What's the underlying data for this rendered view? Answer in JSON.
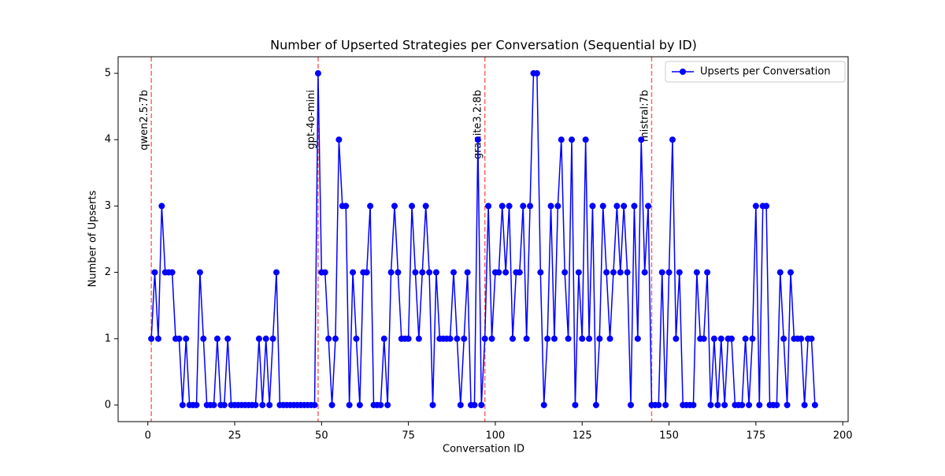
{
  "chart_data": {
    "type": "line",
    "title": "Number of Upserted Strategies per Conversation (Sequential by ID)",
    "x_label": "Conversation ID",
    "y_label": "Number of Upserts",
    "x": [
      1,
      2,
      3,
      4,
      5,
      6,
      7,
      8,
      9,
      10,
      11,
      12,
      13,
      14,
      15,
      16,
      17,
      18,
      19,
      20,
      21,
      22,
      23,
      24,
      25,
      26,
      27,
      28,
      29,
      30,
      31,
      32,
      33,
      34,
      35,
      36,
      37,
      38,
      39,
      40,
      41,
      42,
      43,
      44,
      45,
      46,
      47,
      48,
      49,
      50,
      51,
      52,
      53,
      54,
      55,
      56,
      57,
      58,
      59,
      60,
      61,
      62,
      63,
      64,
      65,
      66,
      67,
      68,
      69,
      70,
      71,
      72,
      73,
      74,
      75,
      76,
      77,
      78,
      79,
      80,
      81,
      82,
      83,
      84,
      85,
      86,
      87,
      88,
      89,
      90,
      91,
      92,
      93,
      94,
      95,
      96,
      97,
      98,
      99,
      100,
      101,
      102,
      103,
      104,
      105,
      106,
      107,
      108,
      109,
      110,
      111,
      112,
      113,
      114,
      115,
      116,
      117,
      118,
      119,
      120,
      121,
      122,
      123,
      124,
      125,
      126,
      127,
      128,
      129,
      130,
      131,
      132,
      133,
      134,
      135,
      136,
      137,
      138,
      139,
      140,
      141,
      142,
      143,
      144,
      145,
      146,
      147,
      148,
      149,
      150,
      151,
      152,
      153,
      154,
      155,
      156,
      157,
      158,
      159,
      160,
      161,
      162,
      163,
      164,
      165,
      166,
      167,
      168,
      169,
      170,
      171,
      172,
      173,
      174,
      175,
      176,
      177,
      178,
      179,
      180,
      181,
      182,
      183,
      184,
      185,
      186,
      187,
      188,
      189,
      190,
      191,
      192
    ],
    "series": [
      {
        "name": "Upserts per Conversation",
        "color": "#0000ff",
        "values": [
          1,
          2,
          1,
          3,
          2,
          2,
          2,
          1,
          1,
          0,
          1,
          0,
          0,
          0,
          2,
          1,
          0,
          0,
          0,
          1,
          0,
          0,
          1,
          0,
          0,
          0,
          0,
          0,
          0,
          0,
          0,
          1,
          0,
          1,
          0,
          1,
          2,
          0,
          0,
          0,
          0,
          0,
          0,
          0,
          0,
          0,
          0,
          0,
          5,
          2,
          2,
          1,
          0,
          1,
          4,
          3,
          3,
          0,
          2,
          1,
          0,
          2,
          2,
          3,
          0,
          0,
          0,
          1,
          0,
          2,
          3,
          2,
          1,
          1,
          1,
          3,
          2,
          1,
          2,
          3,
          2,
          0,
          2,
          1,
          1,
          1,
          1,
          2,
          1,
          0,
          1,
          2,
          0,
          0,
          4,
          0,
          1,
          3,
          1,
          2,
          2,
          3,
          2,
          3,
          1,
          2,
          2,
          3,
          1,
          3,
          5,
          5,
          2,
          0,
          1,
          3,
          1,
          3,
          4,
          2,
          1,
          4,
          0,
          2,
          1,
          4,
          1,
          3,
          0,
          1,
          3,
          2,
          1,
          2,
          3,
          2,
          3,
          2,
          0,
          3,
          1,
          4,
          2,
          3,
          0,
          0,
          0,
          2,
          0,
          2,
          4,
          1,
          2,
          0,
          0,
          0,
          0,
          2,
          1,
          1,
          2,
          0,
          1,
          0,
          1,
          0,
          1,
          1,
          0,
          0,
          0,
          1,
          0,
          1,
          3,
          0,
          3,
          3,
          0,
          0,
          0,
          2,
          1,
          0,
          2,
          1,
          1,
          1,
          0,
          1,
          1,
          0
        ]
      }
    ],
    "annotations": [
      {
        "x": 1,
        "text": "qwen2.5:7b"
      },
      {
        "x": 49,
        "text": "gpt-4o-mini"
      },
      {
        "x": 97,
        "text": "granite3.2:8b"
      },
      {
        "x": 145,
        "text": "mistral:7b"
      }
    ],
    "annotation_line_color": "#ff6666",
    "xlim": [
      -8.55,
      201.55
    ],
    "xticks": [
      0,
      25,
      50,
      75,
      100,
      125,
      150,
      175,
      200
    ],
    "ylim": [
      -0.25,
      5.25
    ],
    "yticks": [
      0,
      1,
      2,
      3,
      4,
      5
    ],
    "grid": false,
    "legend": "upper right"
  }
}
